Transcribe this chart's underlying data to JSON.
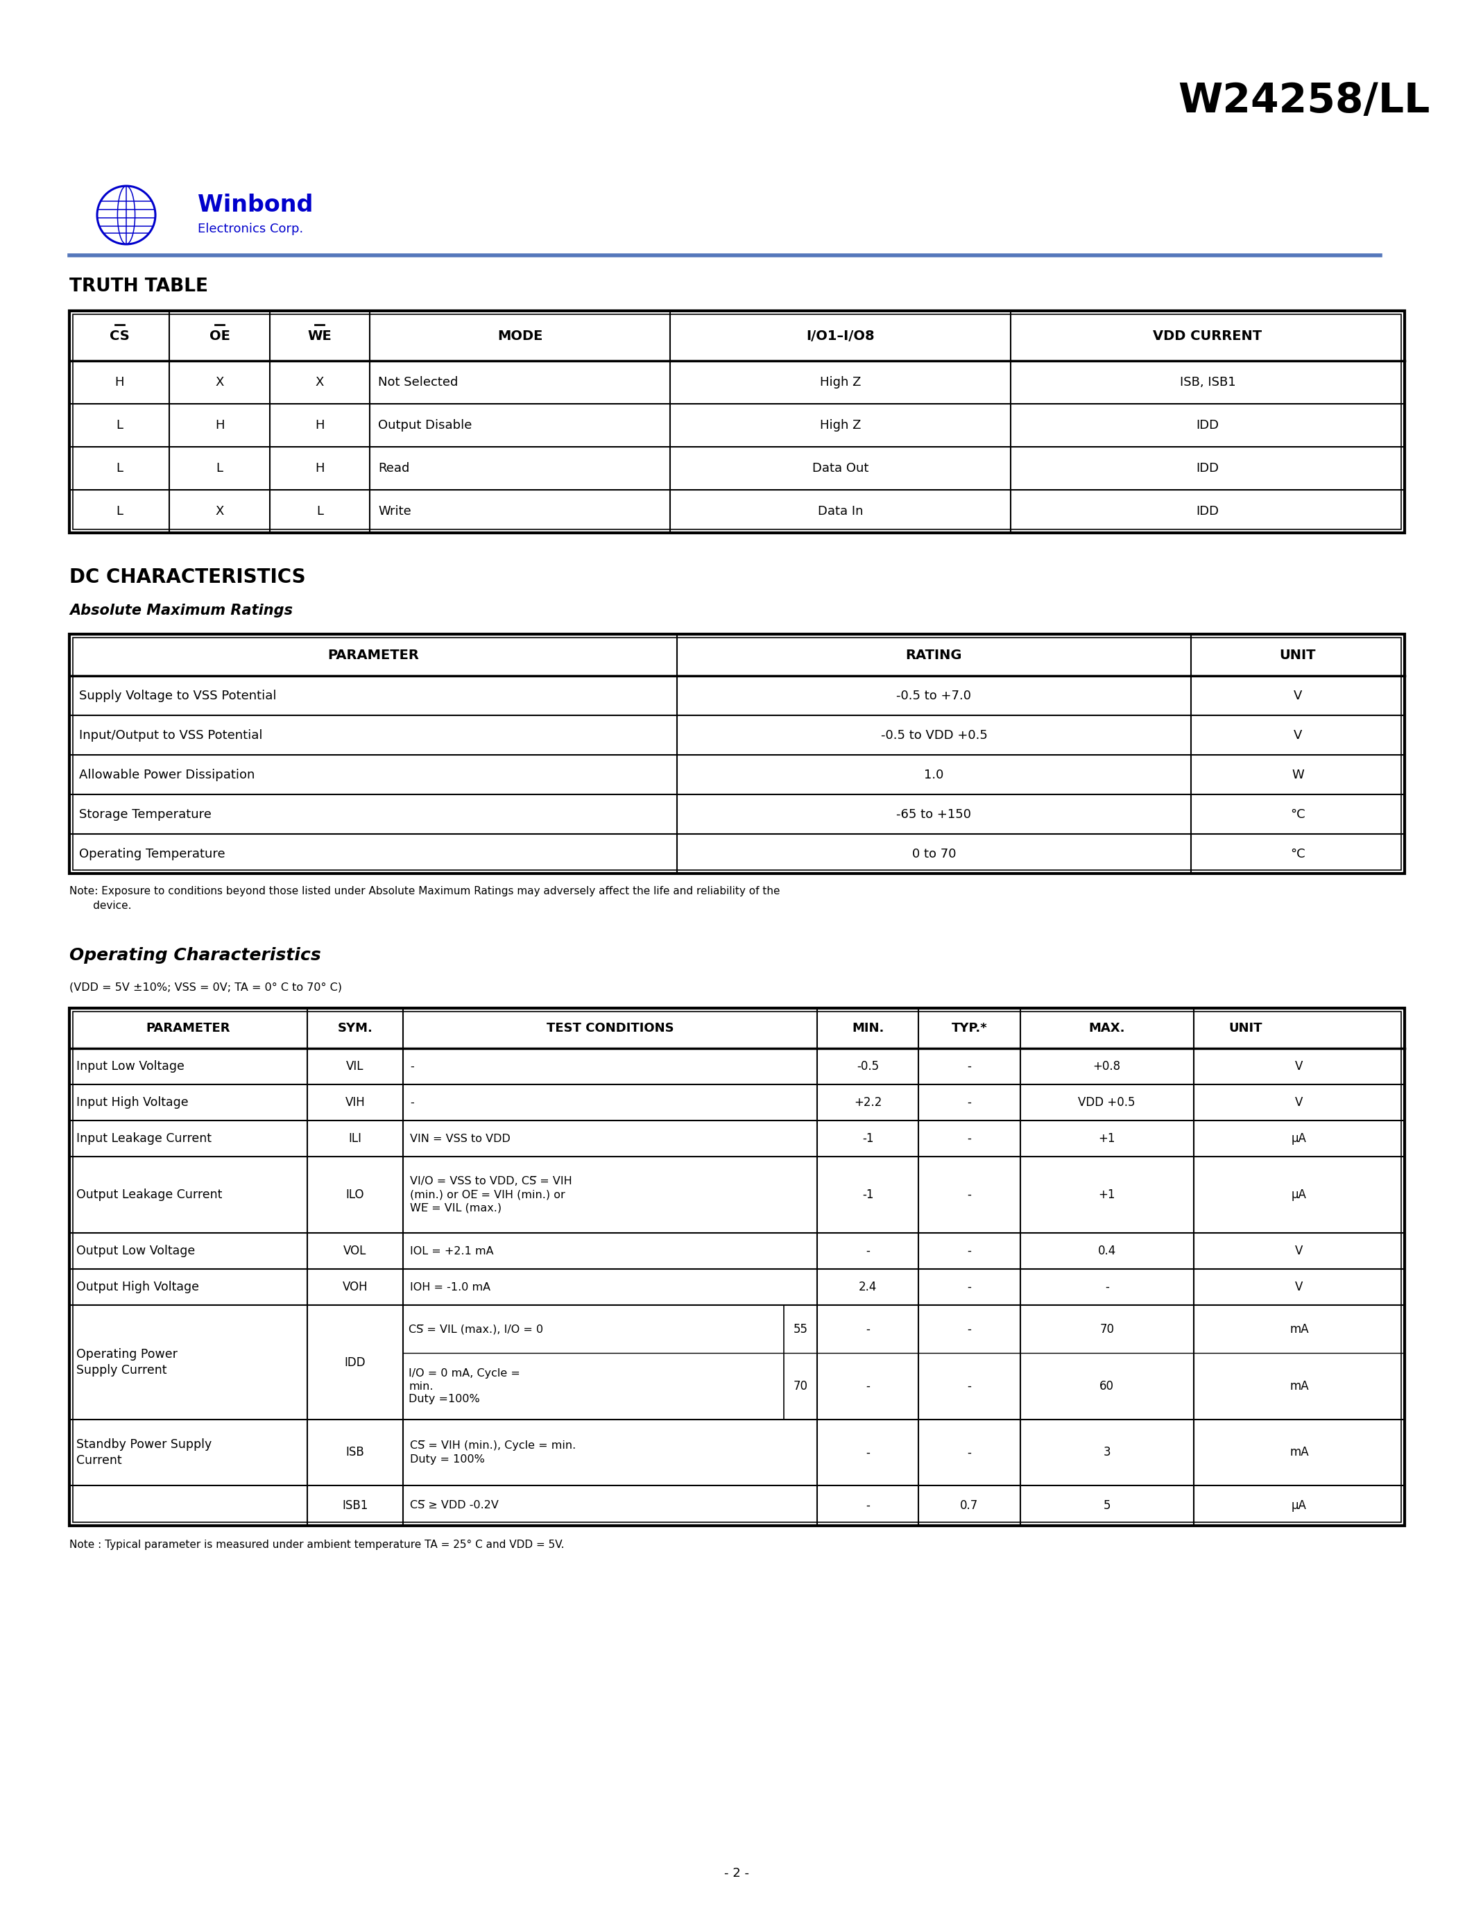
{
  "title": "W24258/LL",
  "bg_color": "#ffffff",
  "page_number": "- 2 -",
  "blue_line_color": "#6699CC",
  "truth_table_title": "TRUTH TABLE",
  "truth_table_headers": [
    "CS",
    "OE",
    "WE",
    "MODE",
    "I/O1–I/O8",
    "VDD CURRENT"
  ],
  "truth_table_overline": [
    true,
    true,
    true,
    false,
    false,
    false
  ],
  "truth_table_rows": [
    [
      "H",
      "X",
      "X",
      "Not Selected",
      "High Z",
      "ISB, ISB1"
    ],
    [
      "L",
      "H",
      "H",
      "Output Disable",
      "High Z",
      "IDD"
    ],
    [
      "L",
      "L",
      "H",
      "Read",
      "Data Out",
      "IDD"
    ],
    [
      "L",
      "X",
      "L",
      "Write",
      "Data In",
      "IDD"
    ]
  ],
  "dc_title": "DC CHARACTERISTICS",
  "abs_max_title": "Absolute Maximum Ratings",
  "abs_max_headers": [
    "PARAMETER",
    "RATING",
    "UNIT"
  ],
  "abs_max_rows": [
    [
      "Supply Voltage to VSS Potential",
      "-0.5 to +7.0",
      "V"
    ],
    [
      "Input/Output to VSS Potential",
      "-0.5 to VDD +0.5",
      "V"
    ],
    [
      "Allowable Power Dissipation",
      "1.0",
      "W"
    ],
    [
      "Storage Temperature",
      "-65 to +150",
      "°C"
    ],
    [
      "Operating Temperature",
      "0 to 70",
      "°C"
    ]
  ],
  "abs_max_note": "Note: Exposure to conditions beyond those listed under Absolute Maximum Ratings may adversely affect the life and reliability of the\n       device.",
  "op_char_title": "Operating Characteristics",
  "op_char_subtitle": "(VDD = 5V ±10%; VSS = 0V; TA = 0° C to 70° C)",
  "op_char_headers": [
    "PARAMETER",
    "SYM.",
    "TEST CONDITIONS",
    "MIN.",
    "TYP.*",
    "MAX.",
    "UNIT"
  ],
  "op_char_note": "Note : Typical parameter is measured under ambient temperature TA = 25° C and VDD = 5V."
}
